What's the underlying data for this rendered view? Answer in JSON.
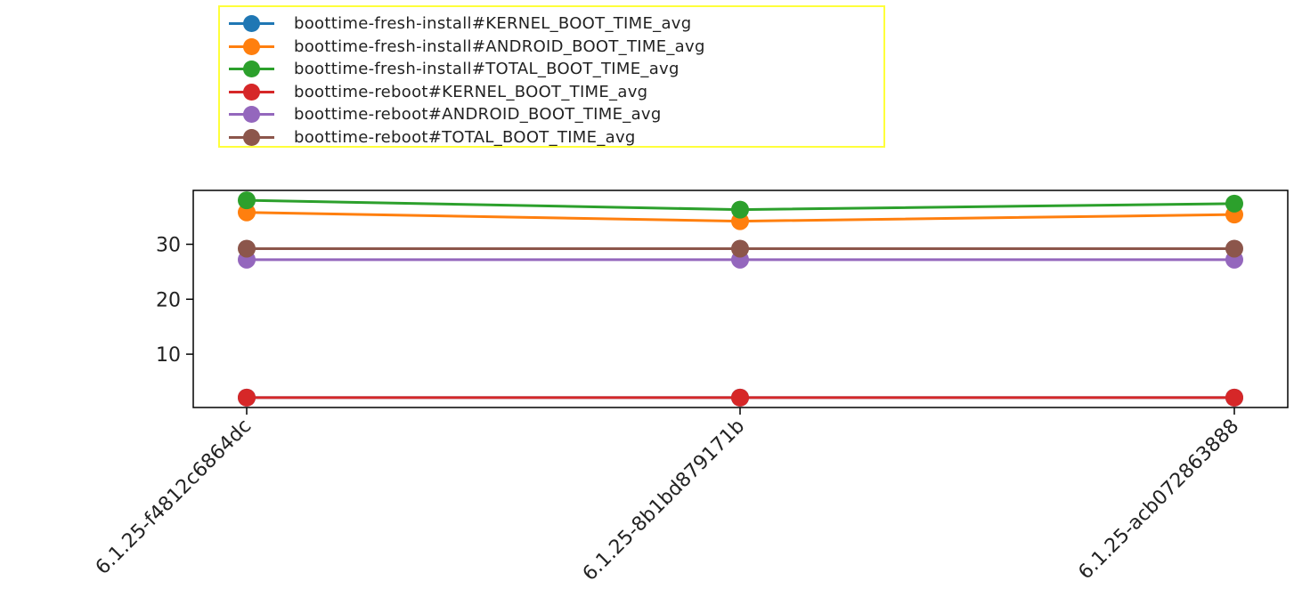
{
  "chart_data": {
    "type": "line",
    "categories": [
      "6.1.25-f4812c6864dc",
      "6.1.25-8b1bd879171b",
      "6.1.25-acb072863888"
    ],
    "series": [
      {
        "name": "boottime-fresh-install#KERNEL_BOOT_TIME_avg",
        "color": "#1f77b4",
        "values": [
          2.1,
          2.1,
          2.1
        ]
      },
      {
        "name": "boottime-fresh-install#ANDROID_BOOT_TIME_avg",
        "color": "#ff7f0e",
        "values": [
          35.8,
          34.2,
          35.4
        ]
      },
      {
        "name": "boottime-fresh-install#TOTAL_BOOT_TIME_avg",
        "color": "#2ca02c",
        "values": [
          38.0,
          36.3,
          37.4
        ]
      },
      {
        "name": "boottime-reboot#KERNEL_BOOT_TIME_avg",
        "color": "#d62728",
        "values": [
          2.1,
          2.1,
          2.1
        ]
      },
      {
        "name": "boottime-reboot#ANDROID_BOOT_TIME_avg",
        "color": "#9467bd",
        "values": [
          27.2,
          27.2,
          27.2
        ]
      },
      {
        "name": "boottime-reboot#TOTAL_BOOT_TIME_avg",
        "color": "#8c564b",
        "values": [
          29.2,
          29.2,
          29.2
        ]
      }
    ],
    "yticks": [
      10,
      20,
      30
    ],
    "ylim": [
      0.3,
      39.8
    ],
    "title": "",
    "xlabel": "",
    "ylabel": "",
    "legend_position": "top-left, above plot",
    "grid": false
  }
}
